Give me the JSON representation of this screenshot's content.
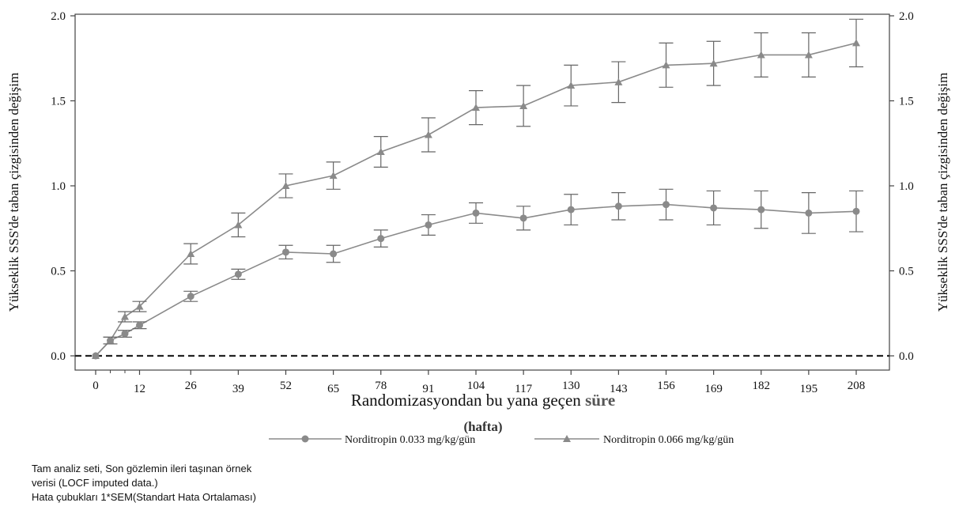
{
  "chart_data": {
    "type": "line",
    "ylabel_left": "Yükseklik SSS'de taban çizgisinden değişim",
    "ylabel_right": "Yükseklik SSS'de taban çizgisinden değişim",
    "xlabel_line1": "Randomizasyondan bu yana geçen",
    "xlabel_line1_emph": "süre",
    "xlabel_line2": "(hafta)",
    "ylim": [
      0,
      2.0
    ],
    "yticks": [
      "0.0",
      "0.5",
      "1.0",
      "1.5",
      "2.0"
    ],
    "xticks": [
      0,
      12,
      26,
      39,
      52,
      65,
      78,
      91,
      104,
      117,
      130,
      143,
      156,
      169,
      182,
      195,
      208
    ],
    "reference_line": 0,
    "legend_position": "bottom",
    "series": [
      {
        "name": "Norditropin 0.033 mg/kg/gün",
        "marker": "circle",
        "color": "#8a8a8a",
        "x": [
          0,
          4,
          8,
          12,
          26,
          39,
          52,
          65,
          78,
          91,
          104,
          117,
          130,
          143,
          156,
          169,
          182,
          195,
          208
        ],
        "y": [
          0.0,
          0.09,
          0.13,
          0.18,
          0.35,
          0.48,
          0.61,
          0.6,
          0.69,
          0.77,
          0.84,
          0.81,
          0.86,
          0.88,
          0.89,
          0.87,
          0.86,
          0.84,
          0.85
        ],
        "sem": [
          0.0,
          0.02,
          0.02,
          0.02,
          0.03,
          0.03,
          0.04,
          0.05,
          0.05,
          0.06,
          0.06,
          0.07,
          0.09,
          0.08,
          0.09,
          0.1,
          0.11,
          0.12,
          0.12
        ]
      },
      {
        "name": "Norditropin 0.066 mg/kg/gün",
        "marker": "triangle",
        "color": "#8a8a8a",
        "x": [
          0,
          4,
          8,
          12,
          26,
          39,
          52,
          65,
          78,
          91,
          104,
          117,
          130,
          143,
          156,
          169,
          182,
          195,
          208
        ],
        "y": [
          0.0,
          0.09,
          0.23,
          0.29,
          0.6,
          0.77,
          1.0,
          1.06,
          1.2,
          1.3,
          1.46,
          1.47,
          1.59,
          1.61,
          1.71,
          1.72,
          1.77,
          1.77,
          1.84
        ],
        "sem": [
          0.0,
          0.02,
          0.03,
          0.03,
          0.06,
          0.07,
          0.07,
          0.08,
          0.09,
          0.1,
          0.1,
          0.12,
          0.12,
          0.12,
          0.13,
          0.13,
          0.13,
          0.13,
          0.14
        ]
      }
    ]
  },
  "footnotes": [
    "Tam analiz seti, Son gözlemin ileri taşınan örnek",
    "verisi (LOCF imputed data.)",
    "Hata çubukları 1*SEM(Standart Hata Ortalaması)"
  ]
}
